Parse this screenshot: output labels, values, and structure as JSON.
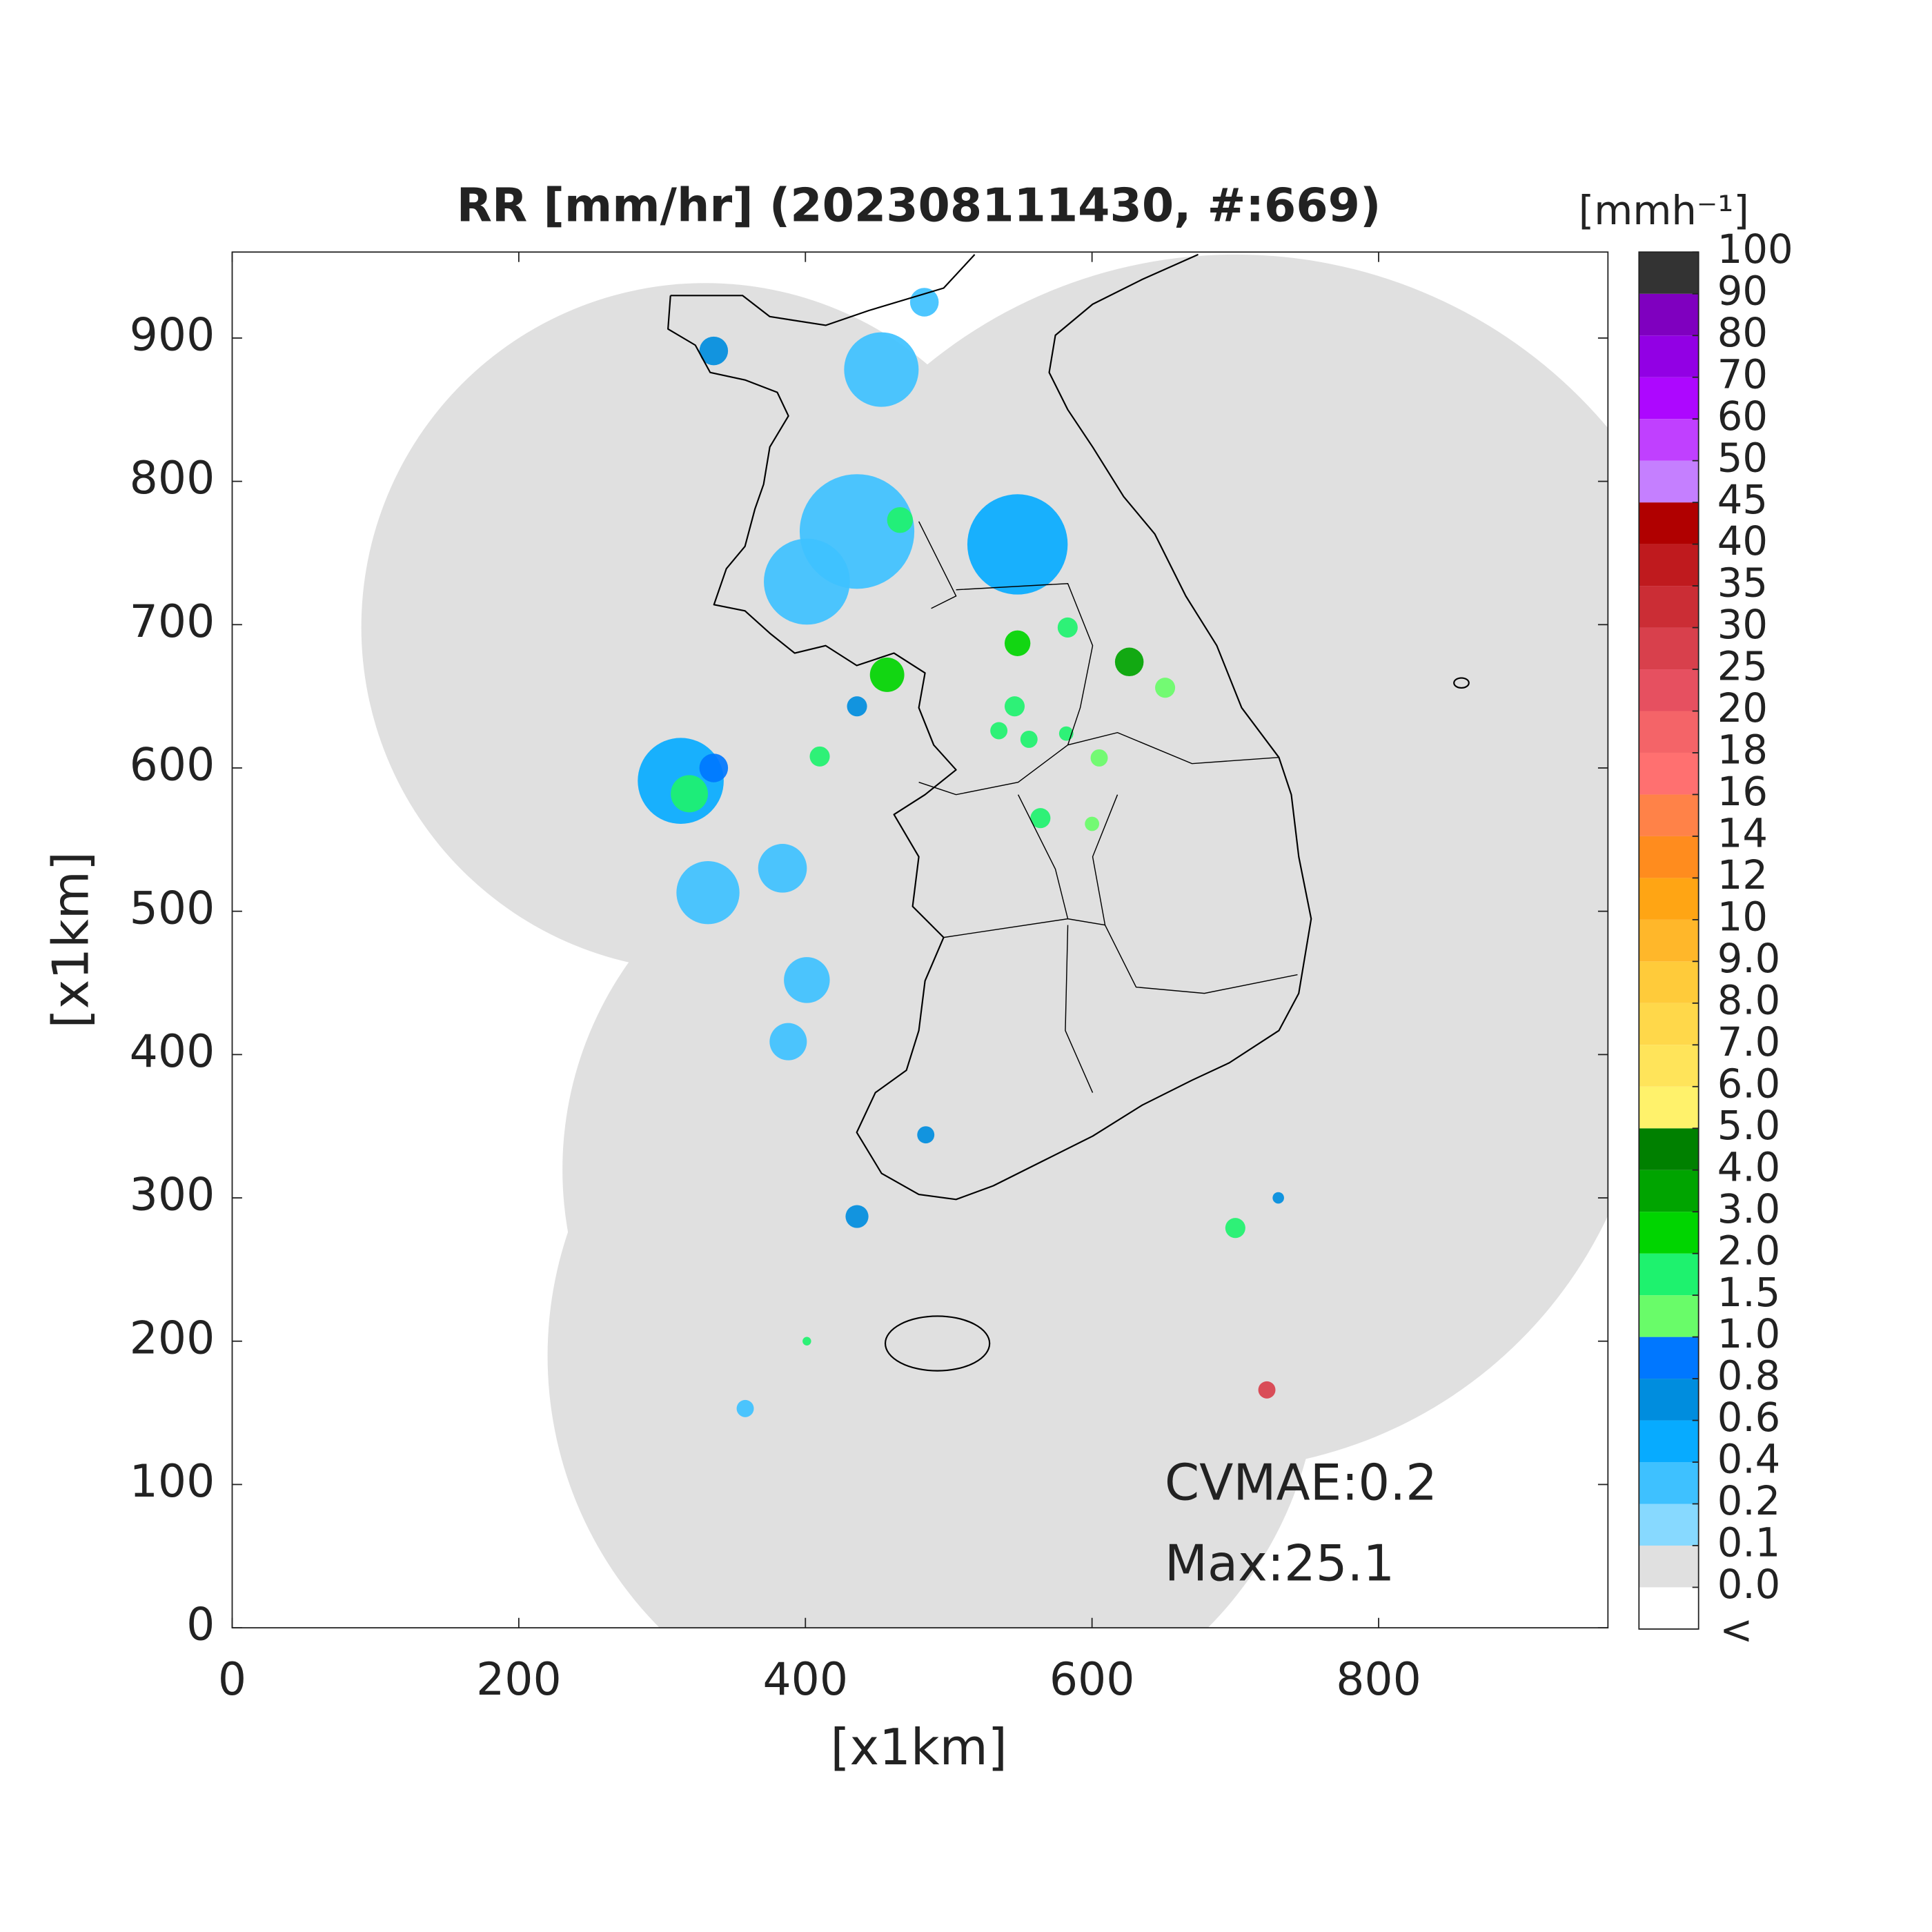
{
  "chart_data": {
    "type": "map",
    "title": "RR [mm/hr] (202308111430, #:669)",
    "xlabel": "[x1km]",
    "ylabel": "[x1km]",
    "xlim": [
      0,
      960
    ],
    "ylim": [
      0,
      960
    ],
    "xticks": [
      0,
      200,
      400,
      600,
      800
    ],
    "yticks": [
      0,
      100,
      200,
      300,
      400,
      500,
      600,
      700,
      800,
      900
    ],
    "colorbar": {
      "title": "[mmh⁻¹]",
      "under_label": "<",
      "under_color": "#ffffff",
      "levels": [
        {
          "value": 0,
          "label": "0.0"
        },
        0.1,
        0.2,
        0.4,
        0.6,
        0.8,
        {
          "value": 1,
          "label": "1.0"
        },
        1.5,
        {
          "value": 2,
          "label": "2.0"
        },
        {
          "value": 3,
          "label": "3.0"
        },
        {
          "value": 4,
          "label": "4.0"
        },
        {
          "value": 5,
          "label": "5.0"
        },
        {
          "value": 6,
          "label": "6.0"
        },
        {
          "value": 7,
          "label": "7.0"
        },
        {
          "value": 8,
          "label": "8.0"
        },
        {
          "value": 9,
          "label": "9.0"
        },
        10,
        12,
        14,
        16,
        18,
        20,
        25,
        30,
        35,
        40,
        45,
        50,
        60,
        70,
        80,
        90,
        100
      ],
      "colors": [
        "#e0e0e0",
        "#87d9ff",
        "#3ec1ff",
        "#07abff",
        "#008dde",
        "#0077ff",
        "#69fc69",
        "#1ef26e",
        "#00d500",
        "#00a400",
        "#008000",
        "#fff26b",
        "#ffe45a",
        "#ffd84a",
        "#ffcb3a",
        "#ffb72a",
        "#ffa514",
        "#ff8c1e",
        "#ff8248",
        "#ff7070",
        "#f46468",
        "#e65060",
        "#d8404c",
        "#cb2d35",
        "#bf1a1e",
        "#b00000",
        "#c57fff",
        "#c040ff",
        "#ad07ff",
        "#9200e4",
        "#7f00bf",
        "#333333"
      ]
    },
    "cells": {
      "x": [
        436,
        401,
        548,
        466,
        457,
        548,
        626,
        583,
        546,
        535,
        556,
        582,
        651,
        605,
        313,
        319,
        336,
        332,
        384,
        401,
        388,
        336,
        453,
        483,
        722,
        700,
        730,
        436,
        358,
        401,
        484,
        410,
        436,
        564,
        600
      ],
      "y": [
        765,
        730,
        756,
        773,
        665,
        687,
        674,
        698,
        643,
        626,
        620,
        624,
        656,
        607,
        591,
        582,
        600,
        513,
        530,
        452,
        409,
        891,
        878,
        925,
        166,
        279,
        300,
        287,
        153,
        200,
        344,
        608,
        643,
        565,
        561
      ],
      "values": [
        0.3,
        0.3,
        0.4,
        1.5,
        2,
        2,
        3,
        1.5,
        1.5,
        1.5,
        1.5,
        1.5,
        1.2,
        1.2,
        0.5,
        1.5,
        0.8,
        0.3,
        0.2,
        0.2,
        0.2,
        0.6,
        0.3,
        0.3,
        25.1,
        1.5,
        0.6,
        0.6,
        0.3,
        1.5,
        0.6,
        1.5,
        0.6,
        1.5,
        1.2
      ],
      "size": [
        40,
        30,
        35,
        9,
        12,
        9,
        10,
        7,
        7,
        6,
        6,
        5,
        7,
        6,
        30,
        13,
        10,
        22,
        17,
        16,
        13,
        10,
        26,
        10,
        6,
        7,
        4,
        8,
        6,
        3,
        6,
        7,
        7,
        7,
        5
      ]
    },
    "annotations": [
      "CVMAE:0.2",
      "Max:25.1"
    ]
  }
}
